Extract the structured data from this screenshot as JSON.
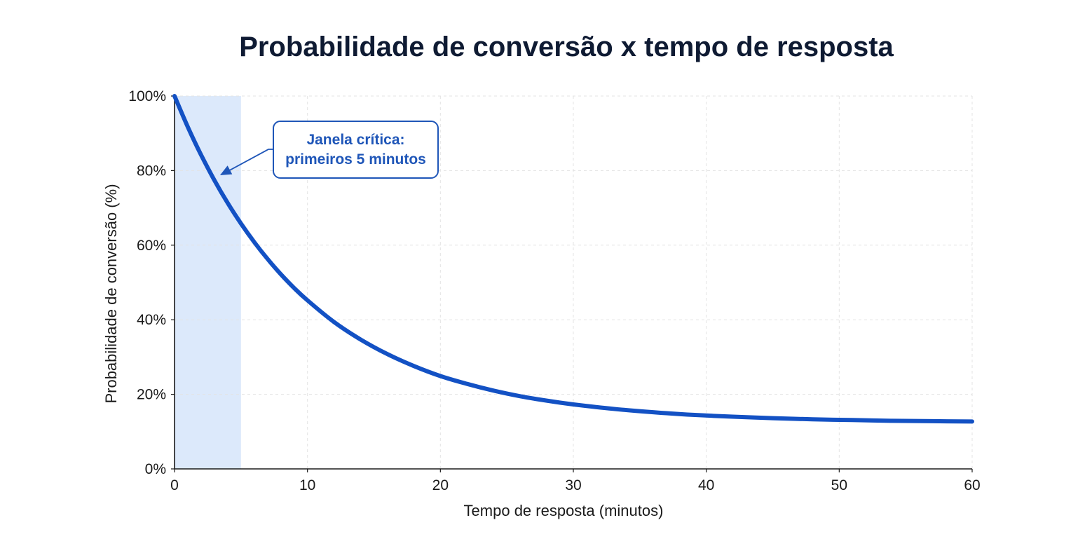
{
  "chart_data": {
    "type": "line",
    "title": "Probabilidade de conversão x tempo de resposta",
    "xlabel": "Tempo de resposta (minutos)",
    "ylabel": "Probabilidade de conversão (%)",
    "xlim": [
      0,
      60
    ],
    "ylim": [
      0,
      100
    ],
    "x_ticks": [
      0,
      10,
      20,
      30,
      40,
      50,
      60
    ],
    "x_tick_labels": [
      "0",
      "10",
      "20",
      "30",
      "40",
      "50",
      "60"
    ],
    "y_ticks": [
      0,
      20,
      40,
      60,
      80,
      100
    ],
    "y_tick_labels": [
      "0%",
      "20%",
      "40%",
      "60%",
      "80%",
      "100%"
    ],
    "grid": true,
    "series": [
      {
        "x": [
          0,
          1,
          2,
          3,
          4,
          5,
          6,
          7,
          8,
          9,
          10,
          12,
          14,
          16,
          18,
          20,
          22,
          24,
          26,
          28,
          30,
          33,
          36,
          39,
          42,
          45,
          48,
          51,
          54,
          57,
          60
        ],
        "values": [
          100,
          91.7,
          84.2,
          77.4,
          71.3,
          65.8,
          60.8,
          56.3,
          52.2,
          48.5,
          45.2,
          39.4,
          34.7,
          30.8,
          27.6,
          24.9,
          22.8,
          21.0,
          19.5,
          18.3,
          17.3,
          16.1,
          15.2,
          14.5,
          14.0,
          13.6,
          13.3,
          13.1,
          12.9,
          12.8,
          12.7
        ],
        "color": "#1351c4"
      }
    ],
    "highlight_region": {
      "x": [
        0,
        5
      ],
      "color": "#dce9fb"
    },
    "annotation": {
      "lines": [
        "Janela crítica:",
        "primeiros 5 minutos"
      ],
      "arrow_target": {
        "x": 3,
        "y": 78
      },
      "color": "#1f56b8"
    }
  }
}
